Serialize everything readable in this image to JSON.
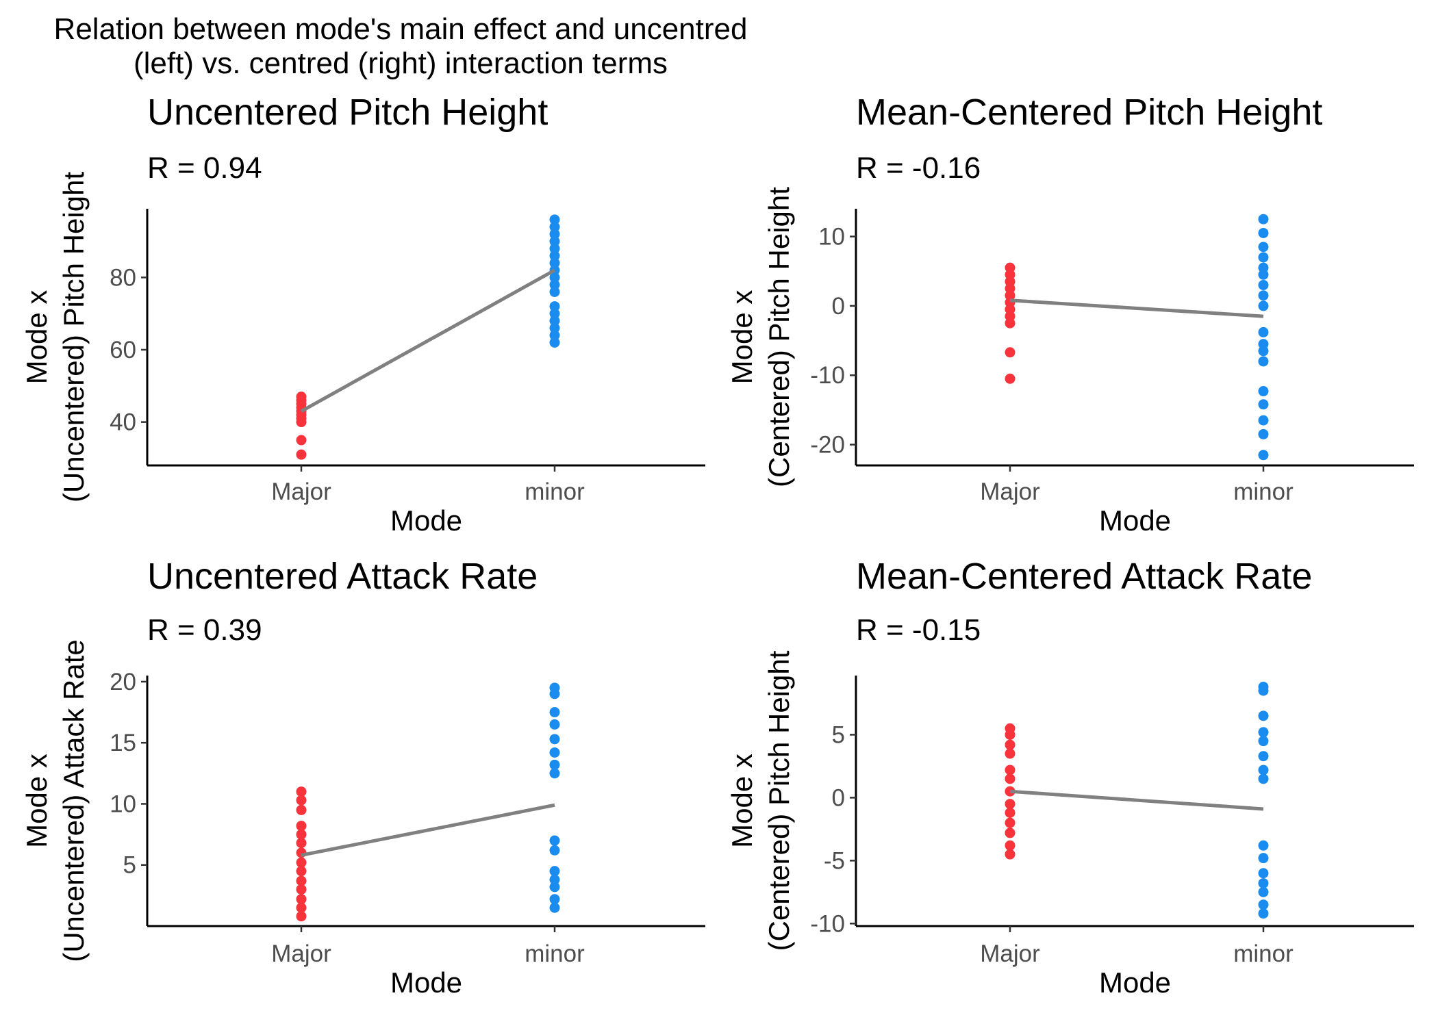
{
  "figure_title": {
    "line1": "Relation between mode's main effect and uncentred",
    "line2": "(left) vs. centred (right) interaction terms"
  },
  "colors": {
    "major_points": "#f8333c",
    "minor_points": "#1a8cf0",
    "fit_line": "#808080"
  },
  "chart_data": [
    {
      "type": "scatter",
      "title": "Uncentered Pitch Height",
      "subtitle": "R = 0.94",
      "xlabel": "Mode",
      "ylabel_line1": "Mode x",
      "ylabel_line2": "(Uncentered) Pitch Height",
      "categories": [
        "Major",
        "minor"
      ],
      "ylim": [
        28,
        99
      ],
      "yticks": [
        40,
        60,
        80
      ],
      "grid": false,
      "legend": "none",
      "series": [
        {
          "category": "Major",
          "values": [
            31,
            35,
            40,
            41,
            42,
            43,
            44,
            45,
            46,
            47
          ]
        },
        {
          "category": "minor",
          "values": [
            62,
            64,
            66,
            68,
            70,
            72,
            76,
            78,
            80,
            82,
            84,
            86,
            88,
            90,
            92,
            94,
            96
          ]
        }
      ],
      "fit": {
        "start": 43,
        "end": 82
      }
    },
    {
      "type": "scatter",
      "title": "Mean-Centered Pitch Height",
      "subtitle": "R = -0.16",
      "xlabel": "Mode",
      "ylabel_line1": "Mode x",
      "ylabel_line2": "(Centered) Pitch Height",
      "categories": [
        "Major",
        "minor"
      ],
      "ylim": [
        -23,
        14
      ],
      "yticks": [
        -20,
        -10,
        0,
        10
      ],
      "grid": false,
      "legend": "none",
      "series": [
        {
          "category": "Major",
          "values": [
            -10.5,
            -6.7,
            -2.5,
            -1.5,
            -0.5,
            0.5,
            1.5,
            2.5,
            3.5,
            4.5,
            5.5
          ]
        },
        {
          "category": "minor",
          "values": [
            -21.5,
            -18.5,
            -16.5,
            -14.2,
            -12.3,
            -8,
            -6.5,
            -5.5,
            -3.8,
            0,
            1.5,
            3,
            4.5,
            5.5,
            7,
            8.5,
            10.5,
            12.5
          ]
        }
      ],
      "fit": {
        "start": 0.8,
        "end": -1.5
      }
    },
    {
      "type": "scatter",
      "title": "Uncentered Attack Rate",
      "subtitle": "R = 0.39",
      "xlabel": "Mode",
      "ylabel_line1": "Mode x",
      "ylabel_line2": "(Uncentered) Attack Rate",
      "categories": [
        "Major",
        "minor"
      ],
      "ylim": [
        0,
        20.5
      ],
      "yticks": [
        5,
        10,
        15,
        20
      ],
      "grid": false,
      "legend": "none",
      "series": [
        {
          "category": "Major",
          "values": [
            0.8,
            1.5,
            2.2,
            3,
            3.7,
            4.5,
            5.2,
            6,
            6.8,
            7.5,
            8.2,
            9.5,
            10.3,
            11
          ]
        },
        {
          "category": "minor",
          "values": [
            1.5,
            2.2,
            3.2,
            3.8,
            4.5,
            6.2,
            7,
            12.5,
            13.2,
            14.2,
            15.3,
            16.5,
            17.5,
            19,
            19.5
          ]
        }
      ],
      "fit": {
        "start": 5.8,
        "end": 9.9
      }
    },
    {
      "type": "scatter",
      "title": "Mean-Centered Attack Rate",
      "subtitle": "R = -0.15",
      "xlabel": "Mode",
      "ylabel_line1": "Mode x",
      "ylabel_line2": "(Centered) Pitch Height",
      "categories": [
        "Major",
        "minor"
      ],
      "ylim": [
        -10.2,
        9.7
      ],
      "yticks": [
        -10,
        -5,
        0,
        5
      ],
      "grid": false,
      "legend": "none",
      "series": [
        {
          "category": "Major",
          "values": [
            -4.5,
            -3.8,
            -2.8,
            -2,
            -1.2,
            -0.5,
            0.5,
            1.5,
            2.2,
            3.5,
            4.2,
            5,
            5.5
          ]
        },
        {
          "category": "minor",
          "values": [
            -9.2,
            -8.5,
            -7.5,
            -6.8,
            -6,
            -4.8,
            -3.8,
            1.5,
            2.2,
            3.3,
            4.5,
            5.2,
            6.5,
            8.5,
            8.8
          ]
        }
      ],
      "fit": {
        "start": 0.5,
        "end": -0.9
      }
    }
  ]
}
